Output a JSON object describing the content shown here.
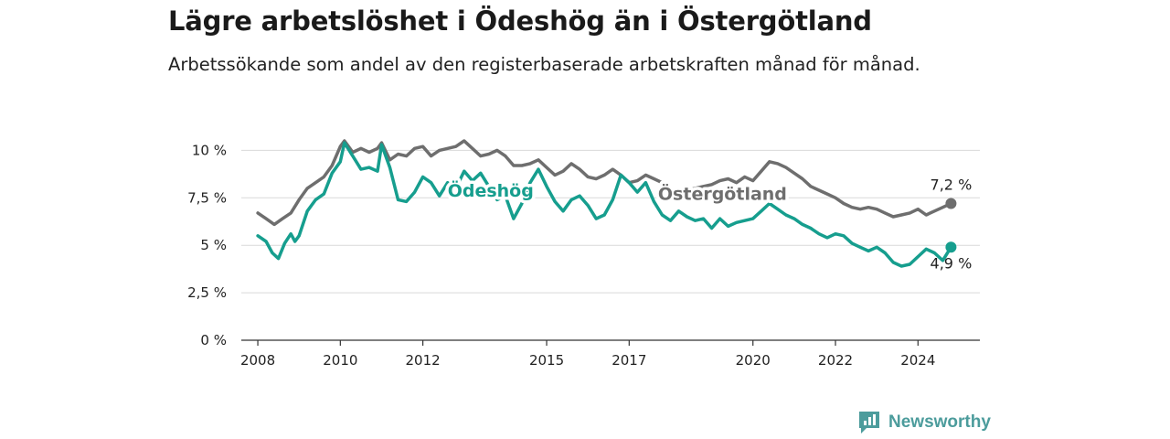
{
  "title": "Lägre arbetslöshet i Ödeshög än i Östergötland",
  "subtitle": "Arbetssökande som andel av den registerbaserade arbetskraften månad för månad.",
  "brand": {
    "name": "Newsworthy",
    "icon": "newsworthy-logo-icon",
    "color": "#4c9c9c"
  },
  "chart_data": {
    "type": "line",
    "x_start": 2008,
    "x_end": 2025,
    "xlim": [
      2007.6,
      2025.5
    ],
    "ylim": [
      0,
      10.5
    ],
    "x_ticks": [
      {
        "value": 2008,
        "label": "2008"
      },
      {
        "value": 2010,
        "label": "2010"
      },
      {
        "value": 2012,
        "label": "2012"
      },
      {
        "value": 2015,
        "label": "2015"
      },
      {
        "value": 2017,
        "label": "2017"
      },
      {
        "value": 2020,
        "label": "2020"
      },
      {
        "value": 2022,
        "label": "2022"
      },
      {
        "value": 2024,
        "label": "2024"
      }
    ],
    "y_ticks": [
      {
        "value": 0,
        "label": "0 %"
      },
      {
        "value": 2.5,
        "label": "2,5 %"
      },
      {
        "value": 5,
        "label": "5 %"
      },
      {
        "value": 7.5,
        "label": "7,5 %"
      },
      {
        "value": 10,
        "label": "10 %"
      }
    ],
    "grid": true,
    "series": [
      {
        "name": "Östergötland",
        "color": "#6e6e6e",
        "end_label": "7,2 %",
        "points": [
          [
            2008.0,
            6.7
          ],
          [
            2008.2,
            6.4
          ],
          [
            2008.4,
            6.1
          ],
          [
            2008.6,
            6.4
          ],
          [
            2008.8,
            6.7
          ],
          [
            2009.0,
            7.4
          ],
          [
            2009.2,
            8.0
          ],
          [
            2009.4,
            8.3
          ],
          [
            2009.6,
            8.6
          ],
          [
            2009.8,
            9.2
          ],
          [
            2010.0,
            10.2
          ],
          [
            2010.1,
            10.5
          ],
          [
            2010.3,
            9.9
          ],
          [
            2010.5,
            10.1
          ],
          [
            2010.7,
            9.9
          ],
          [
            2010.9,
            10.1
          ],
          [
            2011.0,
            10.4
          ],
          [
            2011.2,
            9.5
          ],
          [
            2011.4,
            9.8
          ],
          [
            2011.6,
            9.7
          ],
          [
            2011.8,
            10.1
          ],
          [
            2012.0,
            10.2
          ],
          [
            2012.2,
            9.7
          ],
          [
            2012.4,
            10.0
          ],
          [
            2012.6,
            10.1
          ],
          [
            2012.8,
            10.2
          ],
          [
            2013.0,
            10.5
          ],
          [
            2013.2,
            10.1
          ],
          [
            2013.4,
            9.7
          ],
          [
            2013.6,
            9.8
          ],
          [
            2013.8,
            10.0
          ],
          [
            2014.0,
            9.7
          ],
          [
            2014.2,
            9.2
          ],
          [
            2014.4,
            9.2
          ],
          [
            2014.6,
            9.3
          ],
          [
            2014.8,
            9.5
          ],
          [
            2015.0,
            9.1
          ],
          [
            2015.2,
            8.7
          ],
          [
            2015.4,
            8.9
          ],
          [
            2015.6,
            9.3
          ],
          [
            2015.8,
            9.0
          ],
          [
            2016.0,
            8.6
          ],
          [
            2016.2,
            8.5
          ],
          [
            2016.4,
            8.7
          ],
          [
            2016.6,
            9.0
          ],
          [
            2016.8,
            8.7
          ],
          [
            2017.0,
            8.3
          ],
          [
            2017.2,
            8.4
          ],
          [
            2017.4,
            8.7
          ],
          [
            2017.6,
            8.5
          ],
          [
            2017.8,
            8.3
          ],
          [
            2018.0,
            7.9
          ],
          [
            2018.2,
            7.8
          ],
          [
            2018.4,
            7.9
          ],
          [
            2018.6,
            8.0
          ],
          [
            2018.8,
            8.1
          ],
          [
            2019.0,
            8.2
          ],
          [
            2019.2,
            8.4
          ],
          [
            2019.4,
            8.5
          ],
          [
            2019.6,
            8.3
          ],
          [
            2019.8,
            8.6
          ],
          [
            2020.0,
            8.4
          ],
          [
            2020.2,
            8.9
          ],
          [
            2020.4,
            9.4
          ],
          [
            2020.6,
            9.3
          ],
          [
            2020.8,
            9.1
          ],
          [
            2021.0,
            8.8
          ],
          [
            2021.2,
            8.5
          ],
          [
            2021.4,
            8.1
          ],
          [
            2021.6,
            7.9
          ],
          [
            2021.8,
            7.7
          ],
          [
            2022.0,
            7.5
          ],
          [
            2022.2,
            7.2
          ],
          [
            2022.4,
            7.0
          ],
          [
            2022.6,
            6.9
          ],
          [
            2022.8,
            7.0
          ],
          [
            2023.0,
            6.9
          ],
          [
            2023.2,
            6.7
          ],
          [
            2023.4,
            6.5
          ],
          [
            2023.6,
            6.6
          ],
          [
            2023.8,
            6.7
          ],
          [
            2024.0,
            6.9
          ],
          [
            2024.2,
            6.6
          ],
          [
            2024.4,
            6.8
          ],
          [
            2024.6,
            7.0
          ],
          [
            2024.8,
            7.2
          ]
        ]
      },
      {
        "name": "Ödeshög",
        "color": "#169e8e",
        "end_label": "4,9 %",
        "points": [
          [
            2008.0,
            5.5
          ],
          [
            2008.2,
            5.2
          ],
          [
            2008.35,
            4.6
          ],
          [
            2008.5,
            4.3
          ],
          [
            2008.65,
            5.1
          ],
          [
            2008.8,
            5.6
          ],
          [
            2008.9,
            5.2
          ],
          [
            2009.0,
            5.5
          ],
          [
            2009.2,
            6.8
          ],
          [
            2009.4,
            7.4
          ],
          [
            2009.6,
            7.7
          ],
          [
            2009.8,
            8.8
          ],
          [
            2010.0,
            9.4
          ],
          [
            2010.1,
            10.4
          ],
          [
            2010.3,
            9.7
          ],
          [
            2010.5,
            9.0
          ],
          [
            2010.7,
            9.1
          ],
          [
            2010.9,
            8.9
          ],
          [
            2011.0,
            10.3
          ],
          [
            2011.2,
            9.1
          ],
          [
            2011.4,
            7.4
          ],
          [
            2011.6,
            7.3
          ],
          [
            2011.8,
            7.8
          ],
          [
            2012.0,
            8.6
          ],
          [
            2012.2,
            8.3
          ],
          [
            2012.4,
            7.6
          ],
          [
            2012.6,
            8.3
          ],
          [
            2012.8,
            8.0
          ],
          [
            2013.0,
            8.9
          ],
          [
            2013.2,
            8.4
          ],
          [
            2013.4,
            8.8
          ],
          [
            2013.6,
            8.1
          ],
          [
            2013.8,
            7.4
          ],
          [
            2014.0,
            7.6
          ],
          [
            2014.2,
            6.4
          ],
          [
            2014.4,
            7.2
          ],
          [
            2014.6,
            8.3
          ],
          [
            2014.8,
            9.0
          ],
          [
            2015.0,
            8.1
          ],
          [
            2015.2,
            7.3
          ],
          [
            2015.4,
            6.8
          ],
          [
            2015.6,
            7.4
          ],
          [
            2015.8,
            7.6
          ],
          [
            2016.0,
            7.1
          ],
          [
            2016.2,
            6.4
          ],
          [
            2016.4,
            6.6
          ],
          [
            2016.6,
            7.4
          ],
          [
            2016.8,
            8.7
          ],
          [
            2017.0,
            8.3
          ],
          [
            2017.2,
            7.8
          ],
          [
            2017.4,
            8.3
          ],
          [
            2017.6,
            7.3
          ],
          [
            2017.8,
            6.6
          ],
          [
            2018.0,
            6.3
          ],
          [
            2018.2,
            6.8
          ],
          [
            2018.4,
            6.5
          ],
          [
            2018.6,
            6.3
          ],
          [
            2018.8,
            6.4
          ],
          [
            2019.0,
            5.9
          ],
          [
            2019.2,
            6.4
          ],
          [
            2019.4,
            6.0
          ],
          [
            2019.6,
            6.2
          ],
          [
            2019.8,
            6.3
          ],
          [
            2020.0,
            6.4
          ],
          [
            2020.2,
            6.8
          ],
          [
            2020.4,
            7.2
          ],
          [
            2020.6,
            6.9
          ],
          [
            2020.8,
            6.6
          ],
          [
            2021.0,
            6.4
          ],
          [
            2021.2,
            6.1
          ],
          [
            2021.4,
            5.9
          ],
          [
            2021.6,
            5.6
          ],
          [
            2021.8,
            5.4
          ],
          [
            2022.0,
            5.6
          ],
          [
            2022.2,
            5.5
          ],
          [
            2022.4,
            5.1
          ],
          [
            2022.6,
            4.9
          ],
          [
            2022.8,
            4.7
          ],
          [
            2023.0,
            4.9
          ],
          [
            2023.2,
            4.6
          ],
          [
            2023.4,
            4.1
          ],
          [
            2023.6,
            3.9
          ],
          [
            2023.8,
            4.0
          ],
          [
            2024.0,
            4.4
          ],
          [
            2024.2,
            4.8
          ],
          [
            2024.4,
            4.6
          ],
          [
            2024.6,
            4.2
          ],
          [
            2024.8,
            4.9
          ]
        ]
      }
    ]
  }
}
